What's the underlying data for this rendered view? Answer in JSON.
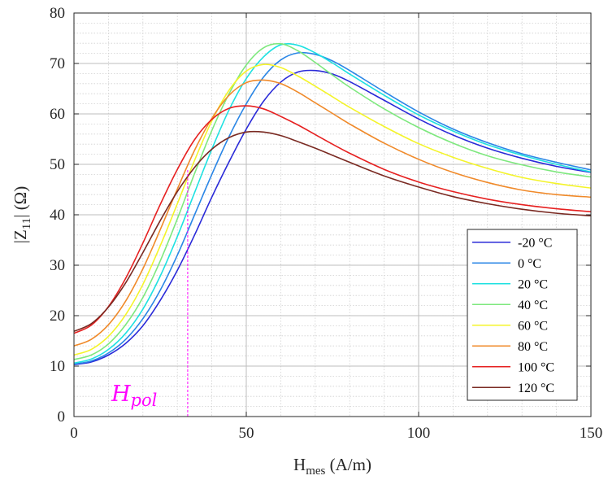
{
  "chart_data": {
    "type": "line",
    "xlabel": {
      "main": "H",
      "sub": "mes",
      "rest": " (A/m)"
    },
    "ylabel": {
      "left": "|Z",
      "sub": "11",
      "rest": "| (Ω)"
    },
    "xlim": [
      0,
      150
    ],
    "ylim": [
      0,
      80
    ],
    "xticks": [
      "0",
      "50",
      "100",
      "150"
    ],
    "yticks": [
      "0",
      "10",
      "20",
      "30",
      "40",
      "50",
      "60",
      "70",
      "80"
    ],
    "grid": true,
    "minor_grid": true,
    "legend_position": "lower-right",
    "annotation": {
      "main": "H",
      "sub": "pol",
      "x": 33,
      "color": "#ff00ff"
    },
    "series": [
      {
        "name": "-20 °C",
        "color": "#2a2ad8",
        "points": [
          [
            0,
            10.3
          ],
          [
            5,
            10.8
          ],
          [
            10,
            12.2
          ],
          [
            15,
            14.5
          ],
          [
            20,
            18
          ],
          [
            25,
            23
          ],
          [
            30,
            29
          ],
          [
            35,
            36
          ],
          [
            40,
            43.5
          ],
          [
            45,
            50.5
          ],
          [
            50,
            57
          ],
          [
            55,
            62.5
          ],
          [
            60,
            66.3
          ],
          [
            65,
            68.3
          ],
          [
            70,
            68.6
          ],
          [
            75,
            67.9
          ],
          [
            80,
            66.4
          ],
          [
            90,
            62.7
          ],
          [
            100,
            59
          ],
          [
            110,
            55.8
          ],
          [
            120,
            53.2
          ],
          [
            130,
            51.2
          ],
          [
            140,
            49.6
          ],
          [
            150,
            48.4
          ]
        ]
      },
      {
        "name": "0 °C",
        "color": "#2a86e6",
        "points": [
          [
            0,
            10.4
          ],
          [
            5,
            11
          ],
          [
            10,
            12.6
          ],
          [
            15,
            15.3
          ],
          [
            20,
            19.4
          ],
          [
            25,
            25
          ],
          [
            30,
            32
          ],
          [
            35,
            40
          ],
          [
            40,
            48
          ],
          [
            45,
            55.5
          ],
          [
            50,
            62
          ],
          [
            55,
            67.3
          ],
          [
            60,
            70.7
          ],
          [
            65,
            72.1
          ],
          [
            70,
            71.8
          ],
          [
            75,
            70.5
          ],
          [
            80,
            68.6
          ],
          [
            90,
            64.4
          ],
          [
            100,
            60.4
          ],
          [
            110,
            57
          ],
          [
            120,
            54.3
          ],
          [
            130,
            52.1
          ],
          [
            140,
            50.4
          ],
          [
            150,
            48.9
          ]
        ]
      },
      {
        "name": "20 °C",
        "color": "#1ee1e1",
        "points": [
          [
            0,
            10.6
          ],
          [
            5,
            11.4
          ],
          [
            10,
            13.3
          ],
          [
            15,
            16.5
          ],
          [
            20,
            21.3
          ],
          [
            25,
            27.8
          ],
          [
            30,
            35.7
          ],
          [
            35,
            44.4
          ],
          [
            40,
            53
          ],
          [
            45,
            60.8
          ],
          [
            50,
            67
          ],
          [
            55,
            71.3
          ],
          [
            60,
            73.7
          ],
          [
            65,
            73.6
          ],
          [
            70,
            72.1
          ],
          [
            75,
            70.1
          ],
          [
            80,
            67.9
          ],
          [
            90,
            63.7
          ],
          [
            100,
            59.8
          ],
          [
            110,
            56.6
          ],
          [
            120,
            53.9
          ],
          [
            130,
            51.8
          ],
          [
            140,
            50
          ],
          [
            150,
            48.5
          ]
        ]
      },
      {
        "name": "40 °C",
        "color": "#7ee87e",
        "points": [
          [
            0,
            11.3
          ],
          [
            5,
            12.2
          ],
          [
            10,
            14.4
          ],
          [
            15,
            18.2
          ],
          [
            20,
            23.6
          ],
          [
            25,
            30.8
          ],
          [
            30,
            39.2
          ],
          [
            35,
            48.2
          ],
          [
            40,
            56.7
          ],
          [
            45,
            64
          ],
          [
            50,
            69.7
          ],
          [
            55,
            73.1
          ],
          [
            60,
            73.9
          ],
          [
            65,
            72.5
          ],
          [
            70,
            70.2
          ],
          [
            75,
            67.7
          ],
          [
            80,
            65.3
          ],
          [
            90,
            61
          ],
          [
            100,
            57.3
          ],
          [
            110,
            54.2
          ],
          [
            120,
            51.7
          ],
          [
            130,
            49.9
          ],
          [
            140,
            48.5
          ],
          [
            150,
            47.5
          ]
        ]
      },
      {
        "name": "60 °C",
        "color": "#f4f42a",
        "points": [
          [
            0,
            12.2
          ],
          [
            5,
            13.3
          ],
          [
            10,
            15.9
          ],
          [
            15,
            20.2
          ],
          [
            20,
            26.2
          ],
          [
            25,
            33.8
          ],
          [
            30,
            42.2
          ],
          [
            35,
            50.8
          ],
          [
            40,
            58.6
          ],
          [
            45,
            64.7
          ],
          [
            50,
            68.5
          ],
          [
            55,
            69.8
          ],
          [
            60,
            69.2
          ],
          [
            65,
            67.5
          ],
          [
            70,
            65.5
          ],
          [
            75,
            63.4
          ],
          [
            80,
            61.3
          ],
          [
            90,
            57.5
          ],
          [
            100,
            54.1
          ],
          [
            110,
            51.4
          ],
          [
            120,
            49.2
          ],
          [
            130,
            47.4
          ],
          [
            140,
            46.2
          ],
          [
            150,
            45.3
          ]
        ]
      },
      {
        "name": "80 °C",
        "color": "#f08a2a",
        "points": [
          [
            0,
            14
          ],
          [
            5,
            15.3
          ],
          [
            10,
            18.2
          ],
          [
            15,
            22.9
          ],
          [
            20,
            29.3
          ],
          [
            25,
            37
          ],
          [
            30,
            45.1
          ],
          [
            35,
            52.8
          ],
          [
            40,
            59.1
          ],
          [
            45,
            63.7
          ],
          [
            50,
            66.2
          ],
          [
            55,
            66.7
          ],
          [
            60,
            66
          ],
          [
            65,
            64.3
          ],
          [
            70,
            62.2
          ],
          [
            75,
            60.1
          ],
          [
            80,
            58
          ],
          [
            90,
            54.2
          ],
          [
            100,
            51
          ],
          [
            110,
            48.4
          ],
          [
            120,
            46.4
          ],
          [
            130,
            44.9
          ],
          [
            140,
            44
          ],
          [
            150,
            43.5
          ]
        ]
      },
      {
        "name": "100 °C",
        "color": "#e62020",
        "points": [
          [
            0,
            16.5
          ],
          [
            5,
            18.1
          ],
          [
            10,
            21.8
          ],
          [
            15,
            27.4
          ],
          [
            20,
            34.4
          ],
          [
            25,
            42
          ],
          [
            30,
            49
          ],
          [
            35,
            54.9
          ],
          [
            40,
            58.9
          ],
          [
            45,
            61.1
          ],
          [
            50,
            61.6
          ],
          [
            55,
            61
          ],
          [
            60,
            59.5
          ],
          [
            65,
            57.8
          ],
          [
            70,
            55.9
          ],
          [
            75,
            54
          ],
          [
            80,
            52.2
          ],
          [
            90,
            49
          ],
          [
            100,
            46.5
          ],
          [
            110,
            44.6
          ],
          [
            120,
            43.1
          ],
          [
            130,
            42
          ],
          [
            140,
            41.2
          ],
          [
            150,
            40.6
          ]
        ]
      },
      {
        "name": "120 °C",
        "color": "#7a2a22",
        "points": [
          [
            0,
            16.9
          ],
          [
            5,
            18.4
          ],
          [
            10,
            21.7
          ],
          [
            15,
            26.5
          ],
          [
            20,
            32.5
          ],
          [
            25,
            38.8
          ],
          [
            30,
            44.6
          ],
          [
            35,
            49.4
          ],
          [
            40,
            53
          ],
          [
            45,
            55.3
          ],
          [
            50,
            56.4
          ],
          [
            55,
            56.4
          ],
          [
            60,
            55.7
          ],
          [
            65,
            54.5
          ],
          [
            70,
            53.2
          ],
          [
            75,
            51.8
          ],
          [
            80,
            50.4
          ],
          [
            90,
            47.7
          ],
          [
            100,
            45.5
          ],
          [
            110,
            43.6
          ],
          [
            120,
            42.2
          ],
          [
            130,
            41.1
          ],
          [
            140,
            40.3
          ],
          [
            150,
            39.8
          ]
        ]
      }
    ]
  }
}
